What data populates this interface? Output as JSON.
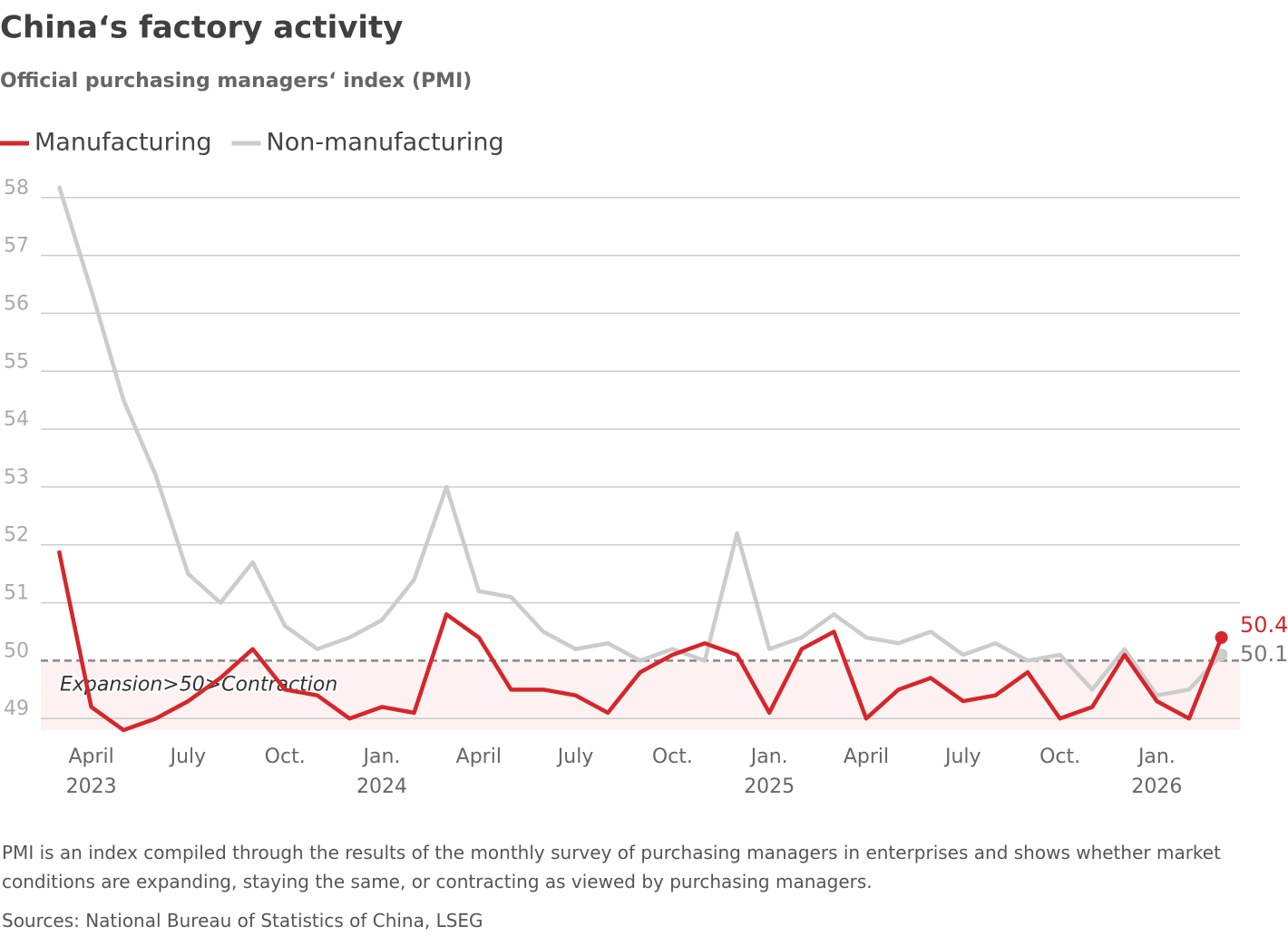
{
  "chart_data": {
    "type": "line",
    "title": "China‘s factory activity",
    "subtitle": "Official purchasing managers‘ index (PMI)",
    "categories": [
      null,
      "April\n2023",
      null,
      null,
      "July",
      null,
      null,
      "Oct.",
      null,
      null,
      "Jan.\n2024",
      null,
      null,
      "April",
      null,
      null,
      "July",
      null,
      null,
      "Oct.",
      null,
      null,
      "Jan.\n2025",
      null,
      null,
      "April",
      null,
      null,
      "July",
      null,
      null,
      "Oct.",
      null,
      null,
      "Jan.\n2026",
      null,
      null
    ],
    "series": [
      {
        "name": "Manufacturing",
        "color": "#d6262b",
        "values": [
          51.9,
          49.2,
          48.8,
          49.0,
          49.3,
          49.7,
          50.2,
          49.5,
          49.4,
          49.0,
          49.2,
          49.1,
          50.8,
          50.4,
          49.5,
          49.5,
          49.4,
          49.1,
          49.8,
          50.1,
          50.3,
          50.1,
          49.1,
          50.2,
          50.5,
          49.0,
          49.5,
          49.7,
          49.3,
          49.4,
          49.8,
          49.0,
          49.2,
          50.1,
          49.3,
          49.0,
          50.4
        ]
      },
      {
        "name": "Non-manufacturing",
        "color": "#cccccc",
        "values": [
          58.2,
          56.4,
          54.5,
          53.2,
          51.5,
          51.0,
          51.7,
          50.6,
          50.2,
          50.4,
          50.7,
          51.4,
          53.0,
          51.2,
          51.1,
          50.5,
          50.2,
          50.3,
          50.0,
          50.2,
          50.0,
          52.2,
          50.2,
          50.4,
          50.8,
          50.4,
          50.3,
          50.5,
          50.1,
          50.3,
          50.0,
          50.1,
          49.5,
          50.2,
          49.4,
          49.5,
          50.1
        ]
      }
    ],
    "ylim": [
      48.8,
      58.2
    ],
    "yticks": [
      49,
      50,
      51,
      52,
      53,
      54,
      55,
      56,
      57,
      58
    ],
    "grid": true,
    "reference_line": 50,
    "annotation": "Expansion>50>Contraction",
    "note": "PMI is an index compiled through the results of the monthly survey of purchasing managers in enterprises and shows whether market conditions are expanding, staying the same, or contracting as viewed by purchasing managers.",
    "source": "Sources: National Bureau of Statistics of China, LSEG"
  }
}
